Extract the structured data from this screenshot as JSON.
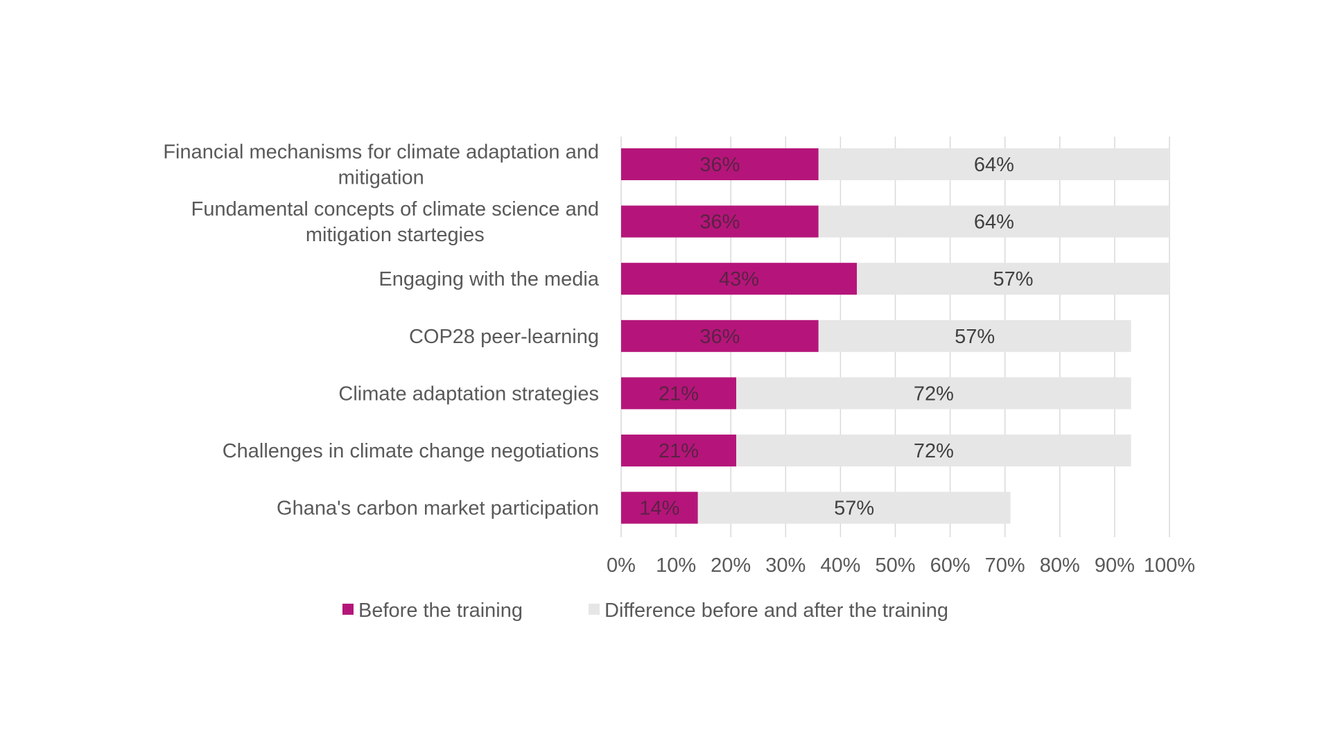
{
  "chart_data": {
    "type": "bar",
    "orientation": "horizontal",
    "stacked": true,
    "title": "",
    "xlabel": "",
    "ylabel": "",
    "xlim": [
      0,
      100
    ],
    "x_ticks": [
      0,
      10,
      20,
      30,
      40,
      50,
      60,
      70,
      80,
      90,
      100
    ],
    "tick_labels": [
      "0%",
      "10%",
      "20%",
      "30%",
      "40%",
      "50%",
      "60%",
      "70%",
      "80%",
      "90%",
      "100%"
    ],
    "gridlines": true,
    "legend_position": "bottom",
    "categories": [
      [
        "Financial mechanisms for climate adaptation and",
        "mitigation"
      ],
      [
        "Fundamental concepts of climate science and",
        "mitigation startegies"
      ],
      [
        "Engaging with the media"
      ],
      [
        "COP28 peer-learning"
      ],
      [
        "Climate adaptation strategies"
      ],
      [
        "Challenges in climate change negotiations"
      ],
      [
        "Ghana's carbon market participation"
      ]
    ],
    "series": [
      {
        "name": "Before the training",
        "color": "#b5157a",
        "label_color": "#5a2244",
        "values": [
          36,
          36,
          43,
          36,
          21,
          21,
          14
        ],
        "labels": [
          "36%",
          "36%",
          "43%",
          "36%",
          "21%",
          "21%",
          "14%"
        ]
      },
      {
        "name": "Difference before and after the training",
        "color": "#e7e6e6",
        "label_color": "#404040",
        "values": [
          64,
          64,
          57,
          57,
          72,
          72,
          57
        ],
        "labels": [
          "64%",
          "64%",
          "57%",
          "57%",
          "72%",
          "72%",
          "57%"
        ]
      }
    ]
  },
  "colors": {
    "axis_text": "#595959",
    "gridline": "#d9d9d9",
    "background": "#ffffff"
  }
}
